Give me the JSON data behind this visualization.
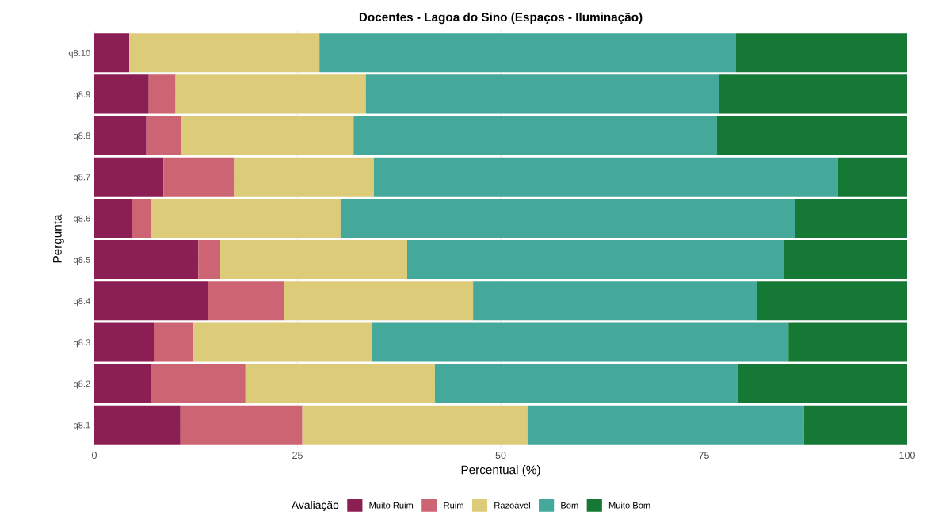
{
  "chart_data": {
    "type": "bar",
    "orientation": "horizontal",
    "stacked": true,
    "title": "Docentes - Lagoa do Sino (Espaços - Iluminação)",
    "xlabel": "Percentual (%)",
    "ylabel": "Pergunta",
    "legend_title": "Avaliação",
    "legend": "bottom",
    "grid": true,
    "categories": [
      "q8.10",
      "q8.9",
      "q8.8",
      "q8.7",
      "q8.6",
      "q8.5",
      "q8.4",
      "q8.3",
      "q8.2",
      "q8.1"
    ],
    "xlim": [
      0,
      100
    ],
    "xticks": [
      0,
      25,
      50,
      75,
      100
    ],
    "series": [
      {
        "name": "Muito Ruim",
        "color": "#8b1e52",
        "values": [
          4.3,
          6.7,
          6.4,
          8.5,
          4.6,
          12.8,
          14.0,
          7.4,
          7.0,
          10.6
        ]
      },
      {
        "name": "Ruim",
        "color": "#cd6474",
        "values": [
          0,
          3.3,
          4.3,
          8.7,
          2.4,
          2.7,
          9.3,
          4.8,
          11.6,
          15.0
        ]
      },
      {
        "name": "Razoável",
        "color": "#dccb79",
        "values": [
          23.4,
          23.4,
          21.2,
          17.2,
          23.3,
          23.0,
          23.3,
          22.0,
          23.3,
          27.7
        ]
      },
      {
        "name": "Bom",
        "color": "#44a99a",
        "values": [
          51.2,
          43.4,
          44.7,
          57.1,
          55.9,
          46.3,
          34.9,
          51.2,
          37.2,
          34.0
        ]
      },
      {
        "name": "Muito Bom",
        "color": "#157835",
        "values": [
          21.1,
          23.2,
          23.4,
          8.5,
          13.8,
          15.2,
          18.5,
          14.6,
          20.9,
          12.7
        ]
      }
    ]
  }
}
